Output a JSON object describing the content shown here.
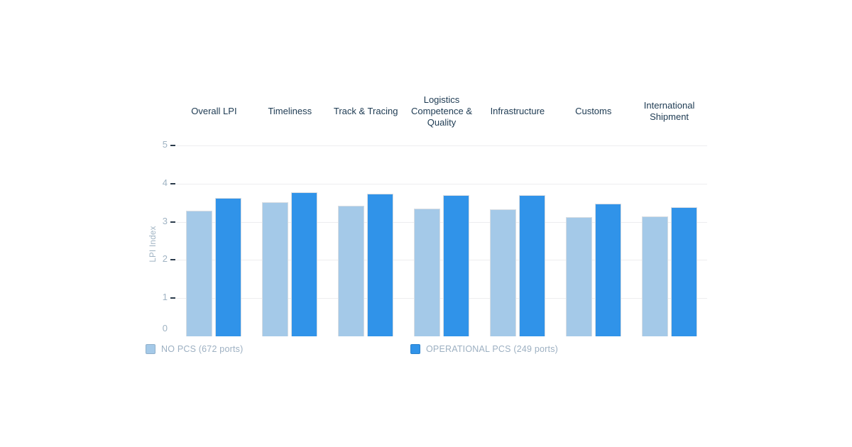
{
  "chart_data": {
    "type": "bar",
    "title": "",
    "xlabel": "",
    "ylabel": "LPI Index",
    "ylim": [
      0,
      5
    ],
    "yticks": [
      0,
      1,
      2,
      3,
      4,
      5
    ],
    "grid": "horizontal",
    "legend_position": "bottom",
    "categories": [
      "Overall LPI",
      "Timeliness",
      "Track & Tracing",
      "Logistics Competence & Quality",
      "Infrastructure",
      "Customs",
      "International Shipment"
    ],
    "series": [
      {
        "name": "NO PCS (672 ports)",
        "color": "#a4c9e8",
        "values": [
          3.3,
          3.52,
          3.42,
          3.35,
          3.33,
          3.12,
          3.14
        ]
      },
      {
        "name": "OPERATIONAL PCS (249 ports)",
        "color": "#3093e9",
        "values": [
          3.63,
          3.77,
          3.73,
          3.7,
          3.7,
          3.47,
          3.38
        ]
      }
    ]
  },
  "colors": {
    "header_text": "#1d3a52",
    "tick_text": "#9fb3c3",
    "legend_text": "#9db0c2",
    "tick_mark": "#2c3c4c",
    "gridline": "#ededef",
    "background": "#ffffff",
    "bar_border": "#d7dde3"
  }
}
